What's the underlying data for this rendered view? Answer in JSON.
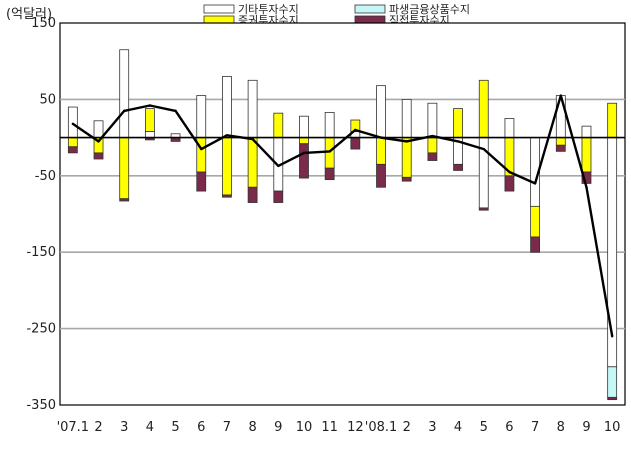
{
  "chart_data": {
    "type": "bar",
    "unit": "(억달러)",
    "title": "",
    "xlabel": "",
    "ylabel": "",
    "ylim": [
      -350,
      150
    ],
    "yticks": [
      150,
      50,
      -50,
      -150,
      -250,
      -350
    ],
    "ytick_labels": [
      "150",
      "50",
      "-50",
      "-150",
      "-250",
      "-350"
    ],
    "grid": true,
    "stacked": true,
    "legend_position": "top",
    "categories": [
      "'07.1",
      "2",
      "3",
      "4",
      "5",
      "6",
      "7",
      "8",
      "9",
      "10",
      "11",
      "12",
      "'08.1",
      "2",
      "3",
      "4",
      "5",
      "6",
      "7",
      "8",
      "9",
      "10"
    ],
    "series": [
      {
        "name": "기타투자수지",
        "kind": "bar",
        "color": "#ffffff",
        "values": [
          40,
          22,
          115,
          8,
          5,
          55,
          80,
          75,
          -70,
          28,
          33,
          8,
          68,
          50,
          45,
          -35,
          -92,
          25,
          -90,
          55,
          15,
          -300
        ]
      },
      {
        "name": "증권투자수지",
        "kind": "bar",
        "color": "#ffff00",
        "values": [
          -12,
          -20,
          -80,
          30,
          0,
          -45,
          -75,
          -65,
          32,
          -8,
          -40,
          15,
          -35,
          -52,
          -20,
          38,
          75,
          -50,
          -40,
          -10,
          -45,
          45
        ]
      },
      {
        "name": "파생금융상품수지",
        "kind": "bar",
        "color": "#c6f7f7",
        "values": [
          0,
          0,
          0,
          0,
          0,
          0,
          0,
          0,
          0,
          0,
          0,
          0,
          0,
          0,
          0,
          0,
          0,
          0,
          0,
          0,
          0,
          -40
        ]
      },
      {
        "name": "직접투자수지",
        "kind": "bar",
        "color": "#7a2a4a",
        "values": [
          -8,
          -8,
          -3,
          -3,
          -5,
          -25,
          -3,
          -20,
          -15,
          -45,
          -15,
          -15,
          -30,
          -5,
          -10,
          -8,
          -3,
          -20,
          -20,
          -8,
          -15,
          -3
        ]
      },
      {
        "name": "",
        "kind": "line",
        "color": "#000000",
        "values": [
          18,
          -5,
          35,
          42,
          35,
          -15,
          3,
          -2,
          -37,
          -20,
          -18,
          10,
          0,
          -5,
          2,
          -5,
          -15,
          -45,
          -60,
          55,
          -65,
          -260
        ]
      }
    ]
  }
}
